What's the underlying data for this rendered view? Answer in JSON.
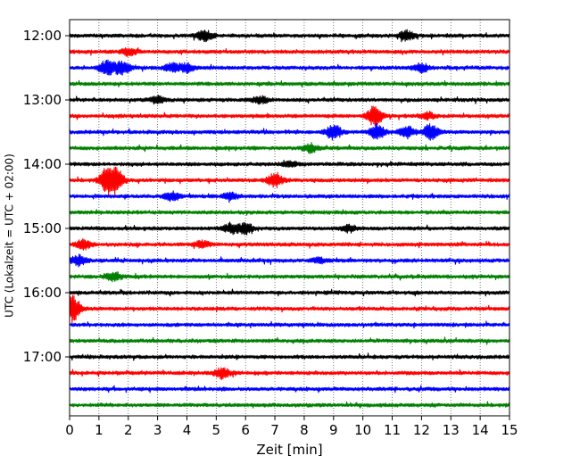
{
  "chart_data": {
    "type": "line",
    "subtype": "helicorder",
    "xlabel": "Zeit  [min]",
    "ylabel": "UTC (Lokalzeit = UTC + 02:00)",
    "xlim": [
      0,
      15
    ],
    "x_ticks": [
      0,
      1,
      2,
      3,
      4,
      5,
      6,
      7,
      8,
      9,
      10,
      11,
      12,
      13,
      14,
      15
    ],
    "x_tick_labels": [
      "0",
      "1",
      "2",
      "3",
      "4",
      "5",
      "6",
      "7",
      "8",
      "9",
      "10",
      "11",
      "12",
      "13",
      "14",
      "15"
    ],
    "grid_x": true,
    "line_minutes": 15,
    "start_time": "12:00",
    "y_tick_labels": [
      "12:00",
      "13:00",
      "14:00",
      "15:00",
      "16:00",
      "17:00"
    ],
    "trace_colors": [
      "#000000",
      "#ff0000",
      "#0000ff",
      "#008000"
    ],
    "traces": [
      {
        "time": "12:00",
        "color": "#000000",
        "events": [
          {
            "x": 4.6,
            "amp": 0.6
          },
          {
            "x": 11.5,
            "amp": 0.6
          }
        ]
      },
      {
        "time": "12:15",
        "color": "#ff0000",
        "events": [
          {
            "x": 2.0,
            "amp": 0.4
          }
        ]
      },
      {
        "time": "12:30",
        "color": "#0000ff",
        "events": [
          {
            "x": 1.3,
            "amp": 1.0
          },
          {
            "x": 1.8,
            "amp": 0.8
          },
          {
            "x": 3.5,
            "amp": 0.5
          },
          {
            "x": 4.0,
            "amp": 0.5
          },
          {
            "x": 12.0,
            "amp": 0.5
          }
        ]
      },
      {
        "time": "12:45",
        "color": "#008000",
        "events": []
      },
      {
        "time": "13:00",
        "color": "#000000",
        "events": [
          {
            "x": 3.0,
            "amp": 0.4
          },
          {
            "x": 6.5,
            "amp": 0.4
          }
        ]
      },
      {
        "time": "13:15",
        "color": "#ff0000",
        "events": [
          {
            "x": 10.4,
            "amp": 1.2
          },
          {
            "x": 12.2,
            "amp": 0.4
          }
        ]
      },
      {
        "time": "13:30",
        "color": "#0000ff",
        "events": [
          {
            "x": 9.0,
            "amp": 0.9
          },
          {
            "x": 10.5,
            "amp": 0.9
          },
          {
            "x": 11.5,
            "amp": 0.7
          },
          {
            "x": 12.3,
            "amp": 0.9
          }
        ]
      },
      {
        "time": "13:45",
        "color": "#008000",
        "events": [
          {
            "x": 8.2,
            "amp": 0.5
          }
        ]
      },
      {
        "time": "14:00",
        "color": "#000000",
        "events": [
          {
            "x": 7.5,
            "amp": 0.3
          }
        ]
      },
      {
        "time": "14:15",
        "color": "#ff0000",
        "events": [
          {
            "x": 1.3,
            "amp": 1.6
          },
          {
            "x": 1.6,
            "amp": 1.2
          },
          {
            "x": 7.0,
            "amp": 0.9
          }
        ]
      },
      {
        "time": "14:30",
        "color": "#0000ff",
        "events": [
          {
            "x": 3.5,
            "amp": 0.5
          },
          {
            "x": 5.5,
            "amp": 0.4
          }
        ]
      },
      {
        "time": "14:45",
        "color": "#008000",
        "events": []
      },
      {
        "time": "15:00",
        "color": "#000000",
        "events": [
          {
            "x": 5.5,
            "amp": 0.6
          },
          {
            "x": 6.0,
            "amp": 0.6
          },
          {
            "x": 9.5,
            "amp": 0.4
          }
        ]
      },
      {
        "time": "15:15",
        "color": "#ff0000",
        "events": [
          {
            "x": 0.5,
            "amp": 0.6
          },
          {
            "x": 4.5,
            "amp": 0.4
          }
        ]
      },
      {
        "time": "15:30",
        "color": "#0000ff",
        "events": [
          {
            "x": 0.3,
            "amp": 0.6
          },
          {
            "x": 8.5,
            "amp": 0.3
          }
        ]
      },
      {
        "time": "15:45",
        "color": "#008000",
        "events": [
          {
            "x": 1.5,
            "amp": 0.5
          }
        ]
      },
      {
        "time": "16:00",
        "color": "#000000",
        "events": []
      },
      {
        "time": "16:15",
        "color": "#ff0000",
        "events": [
          {
            "x": 0.1,
            "amp": 1.6
          }
        ]
      },
      {
        "time": "16:30",
        "color": "#0000ff",
        "events": []
      },
      {
        "time": "16:45",
        "color": "#008000",
        "events": []
      },
      {
        "time": "17:00",
        "color": "#000000",
        "events": []
      },
      {
        "time": "17:15",
        "color": "#ff0000",
        "events": [
          {
            "x": 5.2,
            "amp": 0.6
          }
        ]
      },
      {
        "time": "17:30",
        "color": "#0000ff",
        "events": []
      },
      {
        "time": "17:45",
        "color": "#008000",
        "events": []
      }
    ]
  }
}
